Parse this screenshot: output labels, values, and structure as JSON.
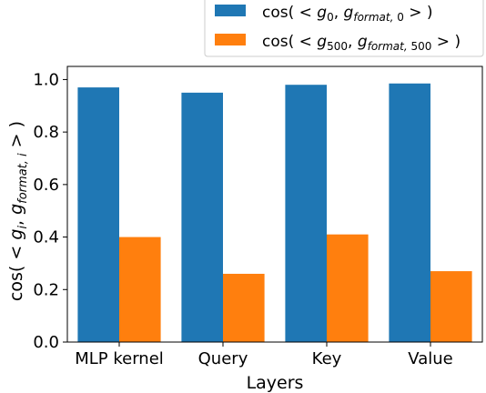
{
  "chart_data": {
    "type": "bar",
    "title": "",
    "xlabel": "Layers",
    "ylabel": "cos( < g_i, g_{format,i} > )",
    "ylim": [
      0,
      1.05
    ],
    "yticks": [
      0.0,
      0.2,
      0.4,
      0.6,
      0.8,
      1.0
    ],
    "ytick_labels": [
      "0.0",
      "0.2",
      "0.4",
      "0.6",
      "0.8",
      "1.0"
    ],
    "categories": [
      "MLP kernel",
      "Query",
      "Key",
      "Value"
    ],
    "grid": false,
    "legend_position": "top-right, above plot",
    "series": [
      {
        "name": "cos( < g_0, g_{format,0} > )",
        "color": "#1f77b4",
        "values": [
          0.97,
          0.95,
          0.98,
          0.985
        ]
      },
      {
        "name": "cos( < g_500, g_{format,500} > )",
        "color": "#ff7f0e",
        "values": [
          0.4,
          0.26,
          0.41,
          0.27
        ]
      }
    ]
  }
}
